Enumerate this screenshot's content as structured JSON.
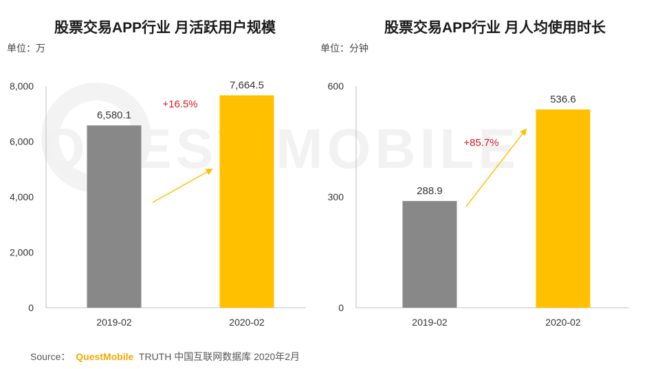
{
  "chart_data": [
    {
      "type": "bar",
      "title": "股票交易APP行业 月活跃用户规模",
      "unit": "单位：万",
      "categories": [
        "2019-02",
        "2020-02"
      ],
      "values": [
        6580.1,
        7664.5
      ],
      "value_labels": [
        "6,580.1",
        "7,664.5"
      ],
      "bar_colors": [
        "#888888",
        "#ffc000"
      ],
      "growth_label": "+16.5%",
      "ylim": [
        0,
        8000
      ],
      "yticks": [
        0,
        2000,
        4000,
        6000,
        8000
      ],
      "ytick_labels": [
        "0",
        "2,000",
        "4,000",
        "6,000",
        "8,000"
      ],
      "grid": false
    },
    {
      "type": "bar",
      "title": "股票交易APP行业 月人均使用时长",
      "unit": "单位：分钟",
      "categories": [
        "2019-02",
        "2020-02"
      ],
      "values": [
        288.9,
        536.6
      ],
      "value_labels": [
        "288.9",
        "536.6"
      ],
      "bar_colors": [
        "#888888",
        "#ffc000"
      ],
      "growth_label": "+85.7%",
      "ylim": [
        0,
        600
      ],
      "yticks": [
        0,
        300,
        600
      ],
      "ytick_labels": [
        "0",
        "300",
        "600"
      ],
      "grid": false
    }
  ],
  "watermark": "QUEST MOBILE",
  "source": {
    "prefix": "Source：",
    "brand": "QuestMobile",
    "suffix": "TRUTH 中国互联网数据库 2020年2月"
  },
  "colors": {
    "accent": "#ffc000",
    "growth": "#d9151e",
    "gray": "#888888"
  }
}
